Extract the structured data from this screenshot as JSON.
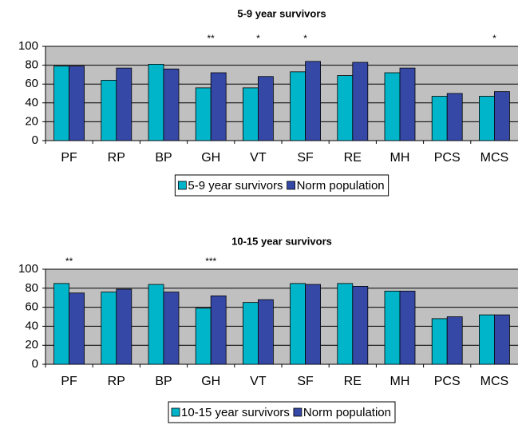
{
  "chart_data": [
    {
      "type": "bar",
      "title": "5-9 year survivors",
      "categories": [
        "PF",
        "RP",
        "BP",
        "GH",
        "VT",
        "SF",
        "RE",
        "MH",
        "PCS",
        "MCS"
      ],
      "series": [
        {
          "name": "5-9 year survivors",
          "color": "#00b5c9",
          "values": [
            79,
            64,
            81,
            56,
            56,
            73,
            69,
            72,
            47,
            47
          ]
        },
        {
          "name": "Norm population",
          "color": "#3548a6",
          "values": [
            79,
            77,
            76,
            72,
            68,
            84,
            83,
            77,
            50,
            52
          ]
        }
      ],
      "ylim": [
        0,
        100
      ],
      "yticks": [
        0,
        20,
        40,
        60,
        80,
        100
      ],
      "grid": true,
      "annotations": [
        {
          "category": "GH",
          "text": "**"
        },
        {
          "category": "VT",
          "text": "*"
        },
        {
          "category": "SF",
          "text": "*"
        },
        {
          "category": "MCS",
          "text": "*"
        }
      ]
    },
    {
      "type": "bar",
      "title": "10-15 year survivors",
      "categories": [
        "PF",
        "RP",
        "BP",
        "GH",
        "VT",
        "SF",
        "RE",
        "MH",
        "PCS",
        "MCS"
      ],
      "series": [
        {
          "name": "10-15 year survivors",
          "color": "#00b5c9",
          "values": [
            85,
            76,
            84,
            59,
            65,
            85,
            85,
            77,
            48,
            52
          ]
        },
        {
          "name": "Norm population",
          "color": "#3548a6",
          "values": [
            75,
            79,
            76,
            72,
            68,
            84,
            82,
            77,
            50,
            52
          ]
        }
      ],
      "ylim": [
        0,
        100
      ],
      "yticks": [
        0,
        20,
        40,
        60,
        80,
        100
      ],
      "grid": true,
      "annotations": [
        {
          "category": "PF",
          "text": "**"
        },
        {
          "category": "GH",
          "text": "***"
        }
      ]
    }
  ]
}
